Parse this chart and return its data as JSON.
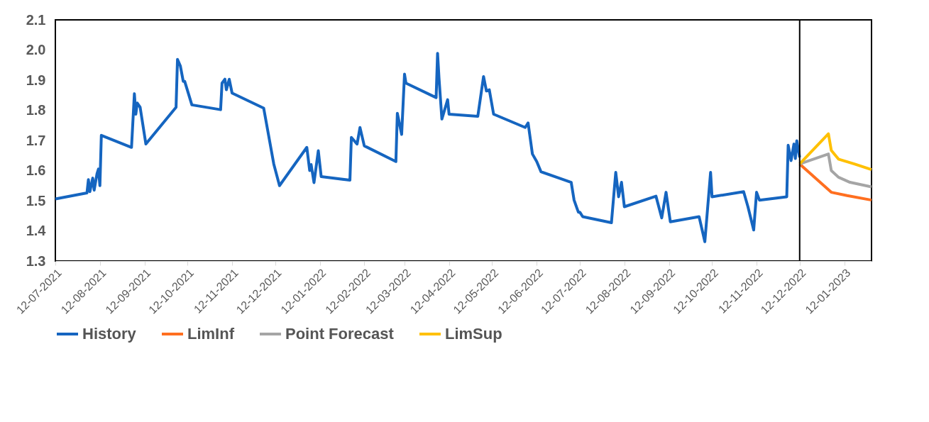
{
  "chart_data": {
    "type": "line",
    "xlim": [
      "2021-07-12",
      "2023-01-31"
    ],
    "xticks": [
      {
        "value": "2021-07-12",
        "label": "12-07-2021"
      },
      {
        "value": "2021-08-12",
        "label": "12-08-2021"
      },
      {
        "value": "2021-09-12",
        "label": "12-09-2021"
      },
      {
        "value": "2021-10-12",
        "label": "12-10-2021"
      },
      {
        "value": "2021-11-12",
        "label": "12-11-2021"
      },
      {
        "value": "2021-12-12",
        "label": "12-12-2021"
      },
      {
        "value": "2022-01-12",
        "label": "12-01-2022"
      },
      {
        "value": "2022-02-12",
        "label": "12-02-2022"
      },
      {
        "value": "2022-03-12",
        "label": "12-03-2022"
      },
      {
        "value": "2022-04-12",
        "label": "12-04-2022"
      },
      {
        "value": "2022-05-12",
        "label": "12-05-2022"
      },
      {
        "value": "2022-06-12",
        "label": "12-06-2022"
      },
      {
        "value": "2022-07-12",
        "label": "12-07-2022"
      },
      {
        "value": "2022-08-12",
        "label": "12-08-2022"
      },
      {
        "value": "2022-09-12",
        "label": "12-09-2022"
      },
      {
        "value": "2022-10-12",
        "label": "12-10-2022"
      },
      {
        "value": "2022-11-12",
        "label": "12-11-2022"
      },
      {
        "value": "2022-12-12",
        "label": "12-12-2022"
      },
      {
        "value": "2023-01-12",
        "label": "12-01-2023"
      }
    ],
    "ylim": [
      1.3,
      2.1
    ],
    "yticks": [
      1.3,
      1.4,
      1.5,
      1.6,
      1.7,
      1.8,
      1.9,
      {
        "value": 2.0,
        "label": "2.0"
      },
      2.1
    ],
    "grid": false,
    "legend": "bottom",
    "marker": "none",
    "line_style": "solid",
    "ref_lines": [
      {
        "axis": "x",
        "value": "2022-12-12",
        "color": "#000000"
      }
    ],
    "series": [
      {
        "name": "History",
        "color": "#1565c0",
        "x": [
          "2021-07-12",
          "2021-08-03",
          "2021-08-04",
          "2021-08-05",
          "2021-08-07",
          "2021-08-08",
          "2021-08-10",
          "2021-08-11",
          "2021-08-12",
          "2021-08-13",
          "2021-09-03",
          "2021-09-05",
          "2021-09-06",
          "2021-09-07",
          "2021-09-09",
          "2021-09-13",
          "2021-10-04",
          "2021-10-05",
          "2021-10-07",
          "2021-10-09",
          "2021-10-10",
          "2021-10-15",
          "2021-11-04",
          "2021-11-05",
          "2021-11-07",
          "2021-11-08",
          "2021-11-10",
          "2021-11-12",
          "2021-12-04",
          "2021-12-11",
          "2021-12-15",
          "2022-01-03",
          "2022-01-05",
          "2022-01-06",
          "2022-01-08",
          "2022-01-11",
          "2022-01-13",
          "2022-02-02",
          "2022-02-03",
          "2022-02-07",
          "2022-02-09",
          "2022-02-12",
          "2022-03-06",
          "2022-03-07",
          "2022-03-10",
          "2022-03-12",
          "2022-03-13",
          "2022-04-03",
          "2022-04-04",
          "2022-04-05",
          "2022-04-07",
          "2022-04-11",
          "2022-04-12",
          "2022-05-02",
          "2022-05-06",
          "2022-05-08",
          "2022-05-10",
          "2022-05-13",
          "2022-06-04",
          "2022-06-06",
          "2022-06-09",
          "2022-06-12",
          "2022-06-15",
          "2022-07-06",
          "2022-07-08",
          "2022-07-10",
          "2022-07-11",
          "2022-07-12",
          "2022-07-14",
          "2022-08-03",
          "2022-08-06",
          "2022-08-08",
          "2022-08-10",
          "2022-08-12",
          "2022-09-03",
          "2022-09-07",
          "2022-09-10",
          "2022-09-13",
          "2022-10-03",
          "2022-10-07",
          "2022-10-11",
          "2022-10-12",
          "2022-11-03",
          "2022-11-06",
          "2022-11-10",
          "2022-11-12",
          "2022-11-14",
          "2022-12-03",
          "2022-12-04",
          "2022-12-06",
          "2022-12-08",
          "2022-12-09",
          "2022-12-10",
          "2022-12-12"
        ],
        "values": [
          1.506,
          1.526,
          1.57,
          1.53,
          1.575,
          1.535,
          1.59,
          1.605,
          1.55,
          1.717,
          1.677,
          1.855,
          1.787,
          1.824,
          1.81,
          1.688,
          1.81,
          1.969,
          1.947,
          1.896,
          1.896,
          1.818,
          1.802,
          1.89,
          1.903,
          1.868,
          1.903,
          1.857,
          1.807,
          1.622,
          1.55,
          1.677,
          1.6,
          1.62,
          1.56,
          1.666,
          1.58,
          1.568,
          1.71,
          1.688,
          1.743,
          1.682,
          1.63,
          1.79,
          1.72,
          1.92,
          1.89,
          1.842,
          1.989,
          1.907,
          1.771,
          1.835,
          1.787,
          1.78,
          1.912,
          1.864,
          1.868,
          1.787,
          1.743,
          1.758,
          1.655,
          1.63,
          1.596,
          1.561,
          1.502,
          1.475,
          1.462,
          1.462,
          1.447,
          1.427,
          1.594,
          1.513,
          1.561,
          1.48,
          1.515,
          1.443,
          1.528,
          1.43,
          1.447,
          1.364,
          1.594,
          1.513,
          1.53,
          1.48,
          1.403,
          1.528,
          1.502,
          1.513,
          1.684,
          1.633,
          1.688,
          1.64,
          1.699,
          1.644
        ]
      },
      {
        "name": "LimInf",
        "color": "#ff6f20",
        "x": [
          "2022-12-12",
          "2023-01-03",
          "2023-01-14",
          "2023-01-31"
        ],
        "values": [
          1.622,
          1.528,
          1.517,
          1.502
        ]
      },
      {
        "name": "Point Forecast",
        "color": "#a5a5a5",
        "x": [
          "2022-12-12",
          "2023-01-01",
          "2023-01-03",
          "2023-01-08",
          "2023-01-16",
          "2023-01-31"
        ],
        "values": [
          1.622,
          1.655,
          1.6,
          1.578,
          1.561,
          1.546
        ]
      },
      {
        "name": "LimSup",
        "color": "#ffc000",
        "x": [
          "2022-12-12",
          "2023-01-01",
          "2023-01-03",
          "2023-01-08",
          "2023-01-19",
          "2023-01-31"
        ],
        "values": [
          1.622,
          1.722,
          1.667,
          1.638,
          1.622,
          1.603
        ]
      }
    ]
  }
}
